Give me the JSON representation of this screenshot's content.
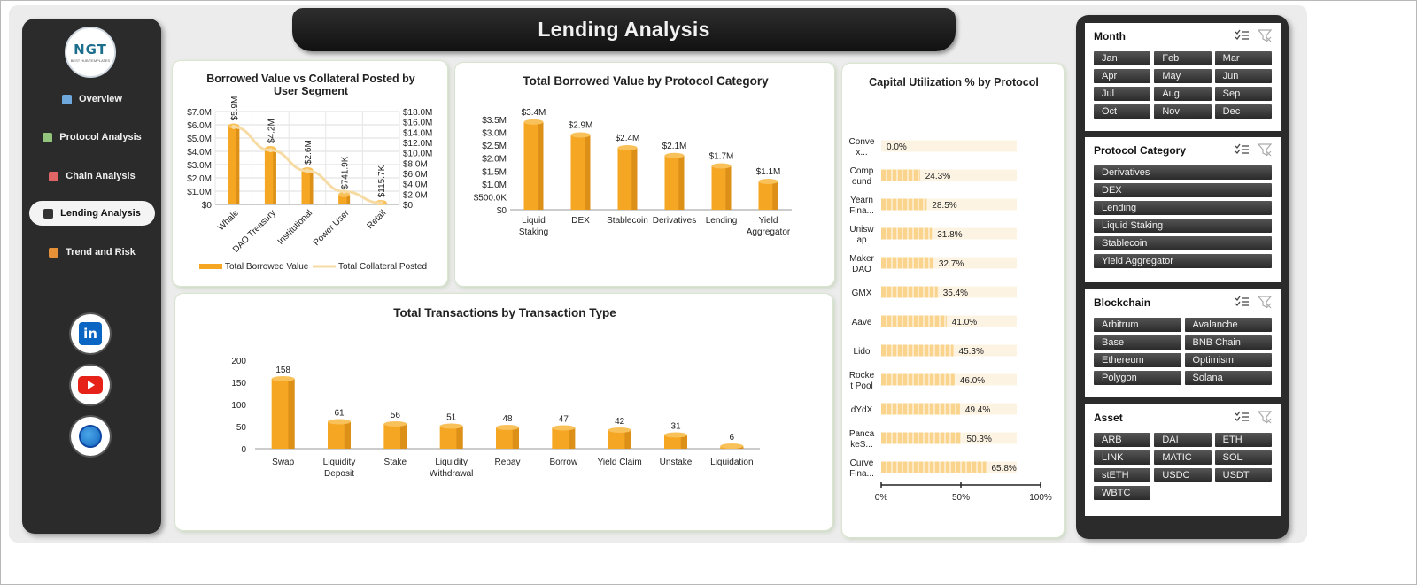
{
  "header": {
    "title": "Lending Analysis"
  },
  "logo": {
    "text": "NGT",
    "subtext": "BEST HUB TEMPLATES"
  },
  "nav": {
    "items": [
      {
        "label": "Overview",
        "icon": "bar-chart-icon",
        "color": "#6fa8dc"
      },
      {
        "label": "Protocol Analysis",
        "icon": "line-chart-icon",
        "color": "#93c47d"
      },
      {
        "label": "Chain Analysis",
        "icon": "clipboard-icon",
        "color": "#e06666"
      },
      {
        "label": "Lending Analysis",
        "icon": "wallet-icon",
        "color": "#333333"
      },
      {
        "label": "Trend and Risk",
        "icon": "clock-icon",
        "color": "#e69138"
      }
    ],
    "active": 3
  },
  "social": [
    "linkedin-icon",
    "youtube-icon",
    "web-icon"
  ],
  "social_text": {
    "linkedin": "in"
  },
  "colors": {
    "bar": "#f5a623",
    "bar_dark": "#c77d10",
    "line": "#f7dba4",
    "util_bar": "#fad38c",
    "util_track": "#fdf3e3"
  },
  "charts": {
    "segment": {
      "title_lines": [
        "Borrowed Value vs Collateral Posted by",
        "User Segment"
      ],
      "categories": [
        "Whale",
        "DAO Treasury",
        "Institutional",
        "Power User",
        "Retail"
      ],
      "left_ticks": [
        "$0",
        "$1.0M",
        "$2.0M",
        "$3.0M",
        "$4.0M",
        "$5.0M",
        "$6.0M",
        "$7.0M"
      ],
      "right_ticks": [
        "$0",
        "$2.0M",
        "$4.0M",
        "$6.0M",
        "$8.0M",
        "$10.0M",
        "$12.0M",
        "$14.0M",
        "$16.0M",
        "$18.0M"
      ],
      "legend": [
        "Total Borrowed Value",
        "Total Collateral Posted"
      ]
    },
    "protocol_cat": {
      "title": "Total Borrowed Value by Protocol Category",
      "category_lines": [
        [
          "Liquid",
          "Staking"
        ],
        [
          "DEX"
        ],
        [
          "Stablecoin"
        ],
        [
          "Derivatives"
        ],
        [
          "Lending"
        ],
        [
          "Yield",
          "Aggregator"
        ]
      ],
      "ticks": [
        "$0",
        "$500.0K",
        "$1.0M",
        "$1.5M",
        "$2.0M",
        "$2.5M",
        "$3.0M",
        "$3.5M"
      ]
    },
    "tx_type": {
      "title": "Total Transactions by Transaction Type",
      "category_lines": [
        [
          "Swap"
        ],
        [
          "Liquidity",
          "Deposit"
        ],
        [
          "Stake"
        ],
        [
          "Liquidity",
          "Withdrawal"
        ],
        [
          "Repay"
        ],
        [
          "Borrow"
        ],
        [
          "Yield Claim"
        ],
        [
          "Unstake"
        ],
        [
          "Liquidation"
        ]
      ],
      "ticks": [
        "0",
        "50",
        "100",
        "150",
        "200"
      ]
    },
    "utilization": {
      "title": "Capital Utilization % by Protocol",
      "label_lines": [
        [
          "Conve",
          "x..."
        ],
        [
          "Comp",
          "ound"
        ],
        [
          "Yearn",
          "Fina..."
        ],
        [
          "Unisw",
          "ap"
        ],
        [
          "Maker",
          "DAO"
        ],
        [
          "GMX"
        ],
        [
          "Aave"
        ],
        [
          "Lido"
        ],
        [
          "Rocke",
          "t Pool"
        ],
        [
          "dYdX"
        ],
        [
          "Panca",
          "keS..."
        ],
        [
          "Curve",
          "Fina..."
        ]
      ],
      "ticks": [
        "0%",
        "50%",
        "100%"
      ]
    }
  },
  "chart_data": [
    {
      "type": "bar",
      "title": "Borrowed Value vs Collateral Posted by User Segment",
      "categories": [
        "Whale",
        "DAO Treasury",
        "Institutional",
        "Power User",
        "Retail"
      ],
      "series": [
        {
          "name": "Total Borrowed Value",
          "kind": "bar",
          "axis": "left",
          "values": [
            5900000,
            4200000,
            2600000,
            741900,
            115700
          ],
          "labels": [
            "$5.9M",
            "$4.2M",
            "$2.6M",
            "$741.9K",
            "$115.7K"
          ]
        },
        {
          "name": "Total Collateral Posted",
          "kind": "line",
          "axis": "right",
          "values": [
            15000000,
            10500000,
            6500000,
            2500000,
            300000
          ]
        }
      ],
      "ylim": [
        0,
        7000000
      ],
      "y2lim": [
        0,
        18000000
      ],
      "legend": "bottom"
    },
    {
      "type": "bar",
      "title": "Total Borrowed Value by Protocol Category",
      "categories": [
        "Liquid Staking",
        "DEX",
        "Stablecoin",
        "Derivatives",
        "Lending",
        "Yield Aggregator"
      ],
      "values": [
        3400000,
        2900000,
        2400000,
        2100000,
        1700000,
        1100000
      ],
      "labels": [
        "$3.4M",
        "$2.9M",
        "$2.4M",
        "$2.1M",
        "$1.7M",
        "$1.1M"
      ],
      "ylim": [
        0,
        3500000
      ]
    },
    {
      "type": "bar",
      "title": "Total Transactions by Transaction Type",
      "categories": [
        "Swap",
        "Liquidity Deposit",
        "Stake",
        "Liquidity Withdrawal",
        "Repay",
        "Borrow",
        "Yield Claim",
        "Unstake",
        "Liquidation"
      ],
      "values": [
        158,
        61,
        56,
        51,
        48,
        47,
        42,
        31,
        6
      ],
      "ylim": [
        0,
        200
      ]
    },
    {
      "type": "bar",
      "orientation": "horizontal",
      "title": "Capital Utilization % by Protocol",
      "categories": [
        "Conve x...",
        "Compound",
        "Yearn Fina...",
        "Uniswap",
        "MakerDAO",
        "GMX",
        "Aave",
        "Lido",
        "Rocket Pool",
        "dYdX",
        "PancakeS...",
        "Curve Fina..."
      ],
      "values": [
        0.0,
        24.3,
        28.5,
        31.8,
        32.7,
        35.4,
        41.0,
        45.3,
        46.0,
        49.4,
        50.3,
        65.8
      ],
      "labels": [
        "0.0%",
        "24.3%",
        "28.5%",
        "31.8%",
        "32.7%",
        "35.4%",
        "41.0%",
        "45.3%",
        "46.0%",
        "49.4%",
        "50.3%",
        "65.8%"
      ],
      "xlim": [
        0,
        100
      ]
    }
  ],
  "slicers": [
    {
      "name": "month",
      "title": "Month",
      "cols": 3,
      "items": [
        "Jan",
        "Feb",
        "Mar",
        "Apr",
        "May",
        "Jun",
        "Jul",
        "Aug",
        "Sep",
        "Oct",
        "Nov",
        "Dec"
      ]
    },
    {
      "name": "protocol-category",
      "title": "Protocol Category",
      "cols": 1,
      "items": [
        "Derivatives",
        "DEX",
        "Lending",
        "Liquid Staking",
        "Stablecoin",
        "Yield Aggregator"
      ]
    },
    {
      "name": "blockchain",
      "title": "Blockchain",
      "cols": 2,
      "items": [
        "Arbitrum",
        "Avalanche",
        "Base",
        "BNB Chain",
        "Ethereum",
        "Optimism",
        "Polygon",
        "Solana"
      ]
    },
    {
      "name": "asset",
      "title": "Asset",
      "cols": 3,
      "items": [
        "ARB",
        "DAI",
        "ETH",
        "LINK",
        "MATIC",
        "SOL",
        "stETH",
        "USDC",
        "USDT",
        "WBTC"
      ]
    }
  ]
}
